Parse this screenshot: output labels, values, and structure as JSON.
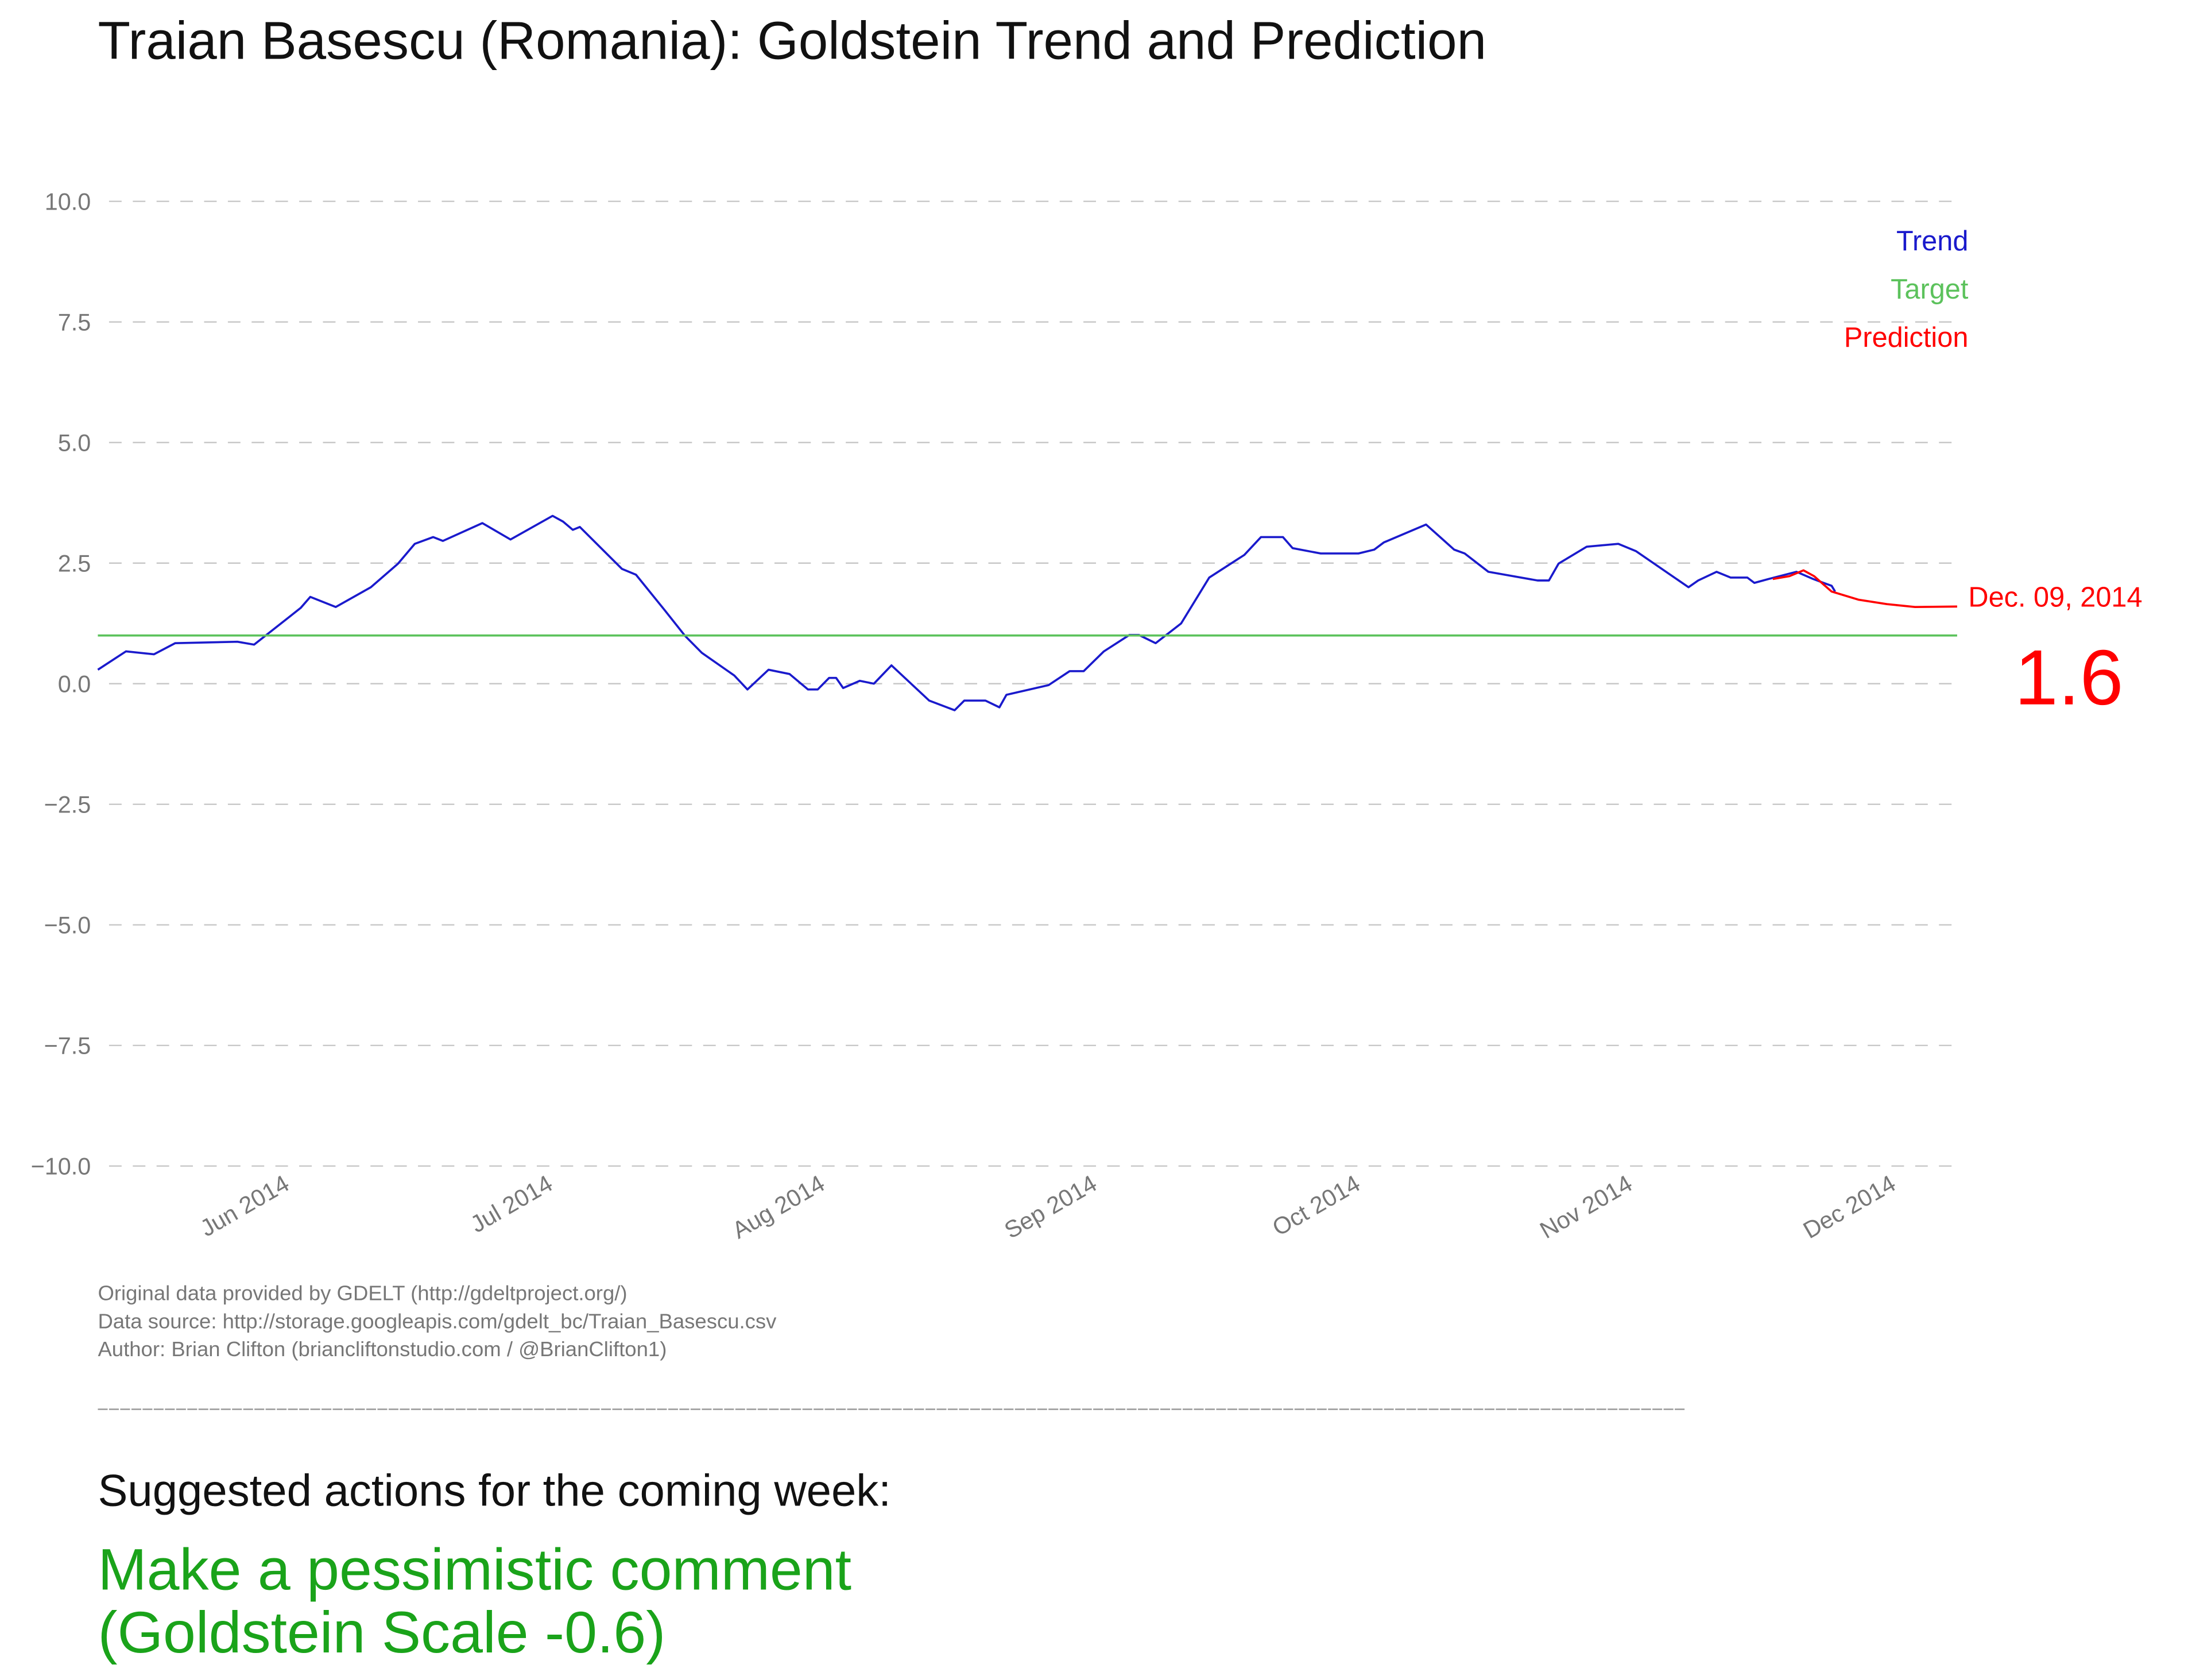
{
  "chart_data": {
    "type": "line",
    "title": "Traian Basescu (Romania): Goldstein Trend and Prediction",
    "xlim": [
      0,
      211.8
    ],
    "xticks": [
      {
        "value": 22,
        "label": "Jun 2014"
      },
      {
        "value": 52,
        "label": "Jul 2014"
      },
      {
        "value": 83,
        "label": "Aug 2014"
      },
      {
        "value": 114,
        "label": "Sep 2014"
      },
      {
        "value": 144,
        "label": "Oct 2014"
      },
      {
        "value": 175,
        "label": "Nov 2014"
      },
      {
        "value": 205,
        "label": "Dec 2014"
      }
    ],
    "ylim": [
      -10,
      10
    ],
    "yticks": [
      {
        "value": 10,
        "label": "10.0"
      },
      7.5,
      {
        "value": 5,
        "label": "5.0"
      },
      2.5,
      {
        "value": 0,
        "label": "0.0"
      },
      {
        "value": -2.5,
        "label": "−2.5"
      },
      {
        "value": -5,
        "label": "−5.0"
      },
      {
        "value": -7.5,
        "label": "−7.5"
      },
      {
        "value": -10,
        "label": "−10.0"
      }
    ],
    "grid": true,
    "legend": "upper right",
    "series": [
      {
        "name": "Trend",
        "color": "#1a1acc",
        "x": [
          0,
          3.2,
          6.4,
          8.8,
          15.9,
          17.8,
          23.1,
          24.2,
          27.1,
          31.1,
          34.2,
          36.1,
          38.2,
          39.3,
          43.8,
          47.0,
          51.8,
          53.0,
          54.1,
          54.9,
          59.7,
          61.3,
          64.5,
          66.9,
          68.8,
          72.5,
          74.0,
          76.4,
          78.8,
          80.9,
          82.0,
          83.3,
          84.1,
          84.9,
          86.8,
          88.4,
          90.4,
          94.7,
          97.6,
          98.7,
          101.1,
          102.7,
          103.5,
          108.3,
          110.7,
          112.3,
          114.6,
          117.5,
          118.6,
          120.5,
          123.4,
          126.6,
          130.6,
          132.5,
          135.0,
          136.1,
          139.3,
          143.6,
          145.4,
          146.5,
          151.3,
          152.9,
          154.5,
          155.7,
          158.4,
          164.0,
          165.3,
          166.4,
          169.6,
          173.2,
          175.2,
          181.2,
          182.3,
          184.4,
          186.0,
          187.9,
          188.7,
          190.3,
          193.5,
          195.4,
          197.5,
          197.9
        ],
        "values": [
          0.29,
          0.67,
          0.61,
          0.84,
          0.87,
          0.81,
          1.57,
          1.8,
          1.59,
          2.0,
          2.49,
          2.9,
          3.04,
          2.96,
          3.33,
          2.99,
          3.48,
          3.36,
          3.19,
          3.25,
          2.38,
          2.26,
          1.54,
          0.99,
          0.64,
          0.17,
          -0.12,
          0.29,
          0.2,
          -0.12,
          -0.12,
          0.12,
          0.12,
          -0.09,
          0.06,
          0.0,
          0.38,
          -0.35,
          -0.55,
          -0.35,
          -0.35,
          -0.49,
          -0.23,
          -0.03,
          0.26,
          0.26,
          0.67,
          1.01,
          1.01,
          0.84,
          1.25,
          2.2,
          2.67,
          3.04,
          3.04,
          2.81,
          2.7,
          2.7,
          2.78,
          2.93,
          3.3,
          3.04,
          2.78,
          2.7,
          2.32,
          2.14,
          2.14,
          2.49,
          2.84,
          2.9,
          2.75,
          2.0,
          2.14,
          2.32,
          2.2,
          2.2,
          2.09,
          2.17,
          2.32,
          2.17,
          2.03,
          1.91
        ]
      },
      {
        "name": "Target",
        "color": "#5cc25c",
        "x": [
          0,
          211.8
        ],
        "values": [
          1,
          1
        ]
      },
      {
        "name": "Prediction",
        "color": "#ff0000",
        "x": [
          190.8,
          192.7,
          194.3,
          195.5,
          197.5,
          200.6,
          203.8,
          207.0,
          211.8
        ],
        "values": [
          2.17,
          2.23,
          2.35,
          2.23,
          1.91,
          1.74,
          1.65,
          1.59,
          1.6
        ]
      }
    ],
    "annotations": [
      {
        "text": "Dec. 09, 2014"
      },
      {
        "text": "1.6"
      }
    ]
  },
  "footer": {
    "notes": [
      "Original data provided by GDELT (http://gdeltproject.org/)",
      "Data source: http://storage.googleapis.com/gdelt_bc/Traian_Basescu.csv",
      "Author: Brian Clifton (briancliftonstudio.com / @BrianClifton1)"
    ],
    "actions_heading": "Suggested actions for the coming week:",
    "action": [
      "Make a pessimistic comment",
      "(Goldstein Scale -0.6)"
    ]
  }
}
